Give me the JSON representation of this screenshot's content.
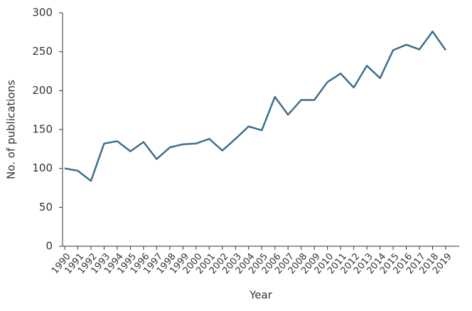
{
  "chart_data": {
    "type": "line",
    "x_label": "Year",
    "y_label": "No. of publications",
    "categories": [
      "1990",
      "1991",
      "1992",
      "1993",
      "1994",
      "1995",
      "1996",
      "1997",
      "1998",
      "1999",
      "2000",
      "2001",
      "2002",
      "2003",
      "2004",
      "2005",
      "2006",
      "2007",
      "2008",
      "2009",
      "2010",
      "2011",
      "2012",
      "2013",
      "2014",
      "2015",
      "2016",
      "2017",
      "2018",
      "2019"
    ],
    "values": [
      100,
      97,
      84,
      132,
      135,
      122,
      134,
      112,
      127,
      131,
      132,
      138,
      123,
      138,
      154,
      149,
      192,
      169,
      188,
      188,
      211,
      222,
      204,
      232,
      216,
      252,
      259,
      253,
      276,
      252
    ],
    "color": "#3f6f8c",
    "ylim": [
      0,
      300
    ],
    "yticks": [
      0,
      50,
      100,
      150,
      200,
      250,
      300
    ],
    "grid": false
  }
}
